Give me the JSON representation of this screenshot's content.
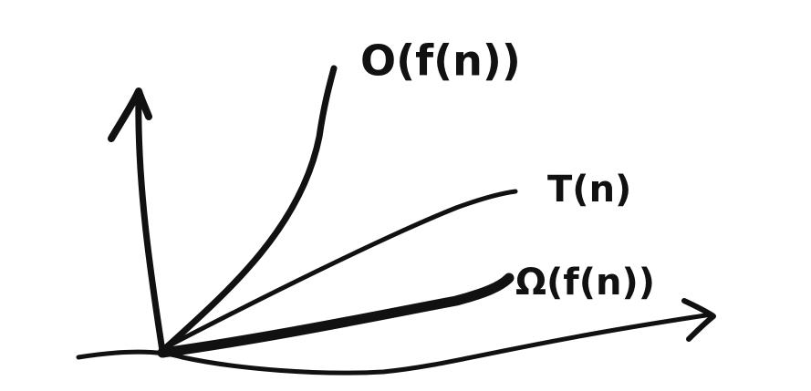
{
  "labels": {
    "upper": "O(f(n))",
    "middle": "T(n)",
    "lower": "Ω(f(n))"
  }
}
